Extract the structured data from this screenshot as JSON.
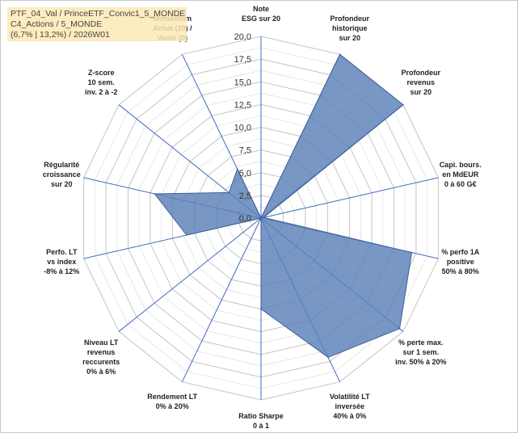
{
  "title_box": {
    "line1": "PTF_04_Val / PrinceETF_Convic1_5_MONDE",
    "line2": "C4_Actions / 5_MONDE",
    "line3": "(6,7% | 13,2%) / 2026W01"
  },
  "colors": {
    "fill": "#5b80b8",
    "stroke": "#3b5f97",
    "grid": "#d0d0d0",
    "spoke": "#3d6cc0"
  },
  "chart_data": {
    "type": "radar",
    "rmax": 20,
    "ticks": [
      "0,0",
      "2,5",
      "5,0",
      "7,5",
      "10,0",
      "12,5",
      "15,0",
      "17,5",
      "20,0"
    ],
    "axes": [
      {
        "lines": [
          "Note",
          "ESG sur 20"
        ]
      },
      {
        "lines": [
          "Profondeur",
          "historique",
          "sur 20"
        ]
      },
      {
        "lines": [
          "Profondeur",
          "revenus",
          "sur 20"
        ]
      },
      {
        "lines": [
          "Capi. bours.",
          "en MdEUR",
          "0 à 60 G€"
        ]
      },
      {
        "lines": [
          "% perfo 1A",
          "positive",
          "50% à 80%"
        ]
      },
      {
        "lines": [
          "% perte max.",
          "sur 1 sem.",
          "inv. 50% à 20%"
        ]
      },
      {
        "lines": [
          "Volatilité LT",
          "inversée",
          "40% à 0%"
        ]
      },
      {
        "lines": [
          "Ratio Sharpe",
          "0 à 1"
        ]
      },
      {
        "lines": [
          "Rendement LT",
          "0% à 20%"
        ]
      },
      {
        "lines": [
          "Niveau LT",
          "revenus",
          "reccurents",
          "0% à 6%"
        ]
      },
      {
        "lines": [
          "Perfo. LT",
          "vs index",
          "-8% à 12%"
        ]
      },
      {
        "lines": [
          "Régularité",
          "croissance",
          "sur 20"
        ]
      },
      {
        "lines": [
          "Z-score",
          "10 sem.",
          "inv. 2 à -2"
        ]
      },
      {
        "lines": [
          "Momentum",
          "Achat (20) /",
          "Vente (0)"
        ]
      }
    ],
    "values": [
      0,
      20,
      20,
      0.3,
      17,
      19.5,
      17,
      10,
      0,
      0,
      8.4,
      12,
      4.5,
      6
    ]
  }
}
